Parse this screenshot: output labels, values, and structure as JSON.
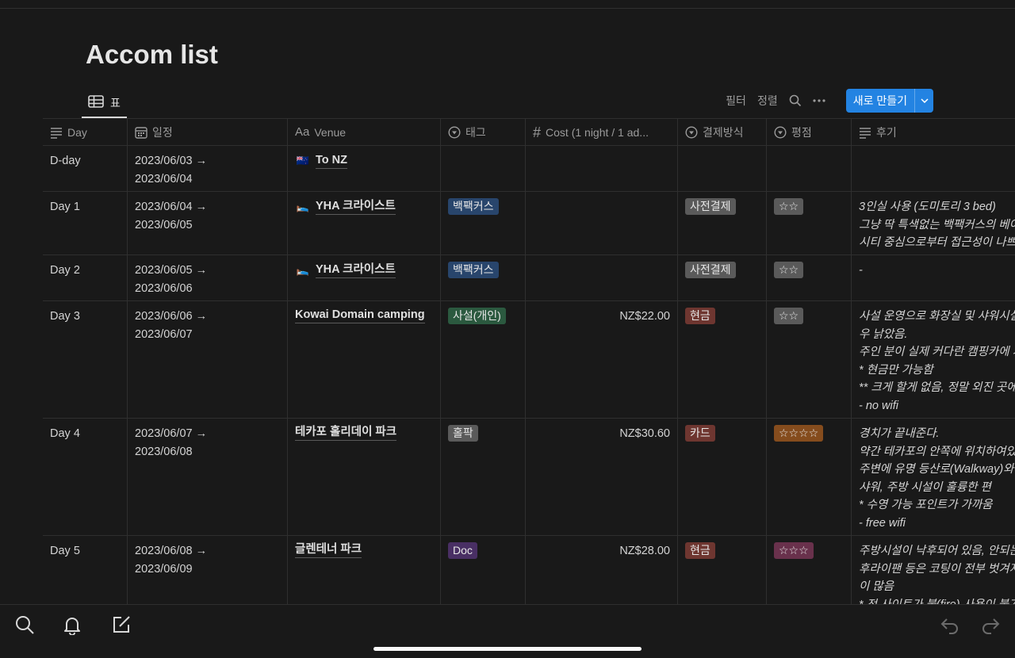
{
  "page": {
    "title": "Accom list"
  },
  "view": {
    "tab_label": "표"
  },
  "toolbar": {
    "filter": "필터",
    "sort": "정렬",
    "new_button": "새로 만들기"
  },
  "columns": [
    {
      "label": "Day",
      "icon": "text-lines-icon"
    },
    {
      "label": "일정",
      "icon": "calendar-icon"
    },
    {
      "label": "Venue",
      "icon": "title-aa-icon"
    },
    {
      "label": "태그",
      "icon": "select-icon"
    },
    {
      "label": "Cost (1 night / 1 ad...",
      "icon": "number-hash-icon"
    },
    {
      "label": "결제방식",
      "icon": "select-icon"
    },
    {
      "label": "평점",
      "icon": "select-icon"
    },
    {
      "label": "후기",
      "icon": "text-lines-icon"
    }
  ],
  "rows": [
    {
      "day": "D-day",
      "date1": "2023/06/03 →",
      "date2": "2023/06/04",
      "venue_emoji": "🇳🇿",
      "venue": "To NZ",
      "tag": "",
      "tag_color": "",
      "cost": "",
      "payment": "",
      "payment_color": "",
      "rating": "",
      "rating_color": "",
      "review": [
        ""
      ]
    },
    {
      "day": "Day 1",
      "date1": "2023/06/04 →",
      "date2": "2023/06/05",
      "venue_emoji": "🛌",
      "venue": "YHA 크라이스트",
      "tag": "백팩커스",
      "tag_color": "#28456c",
      "cost": "",
      "payment": "사전결제",
      "payment_color": "#5a5a5a",
      "rating": "☆☆",
      "rating_color": "#5a5a5a",
      "review": [
        "3인실 사용 (도미토리 3 bed)",
        "그냥 딱 특색없는 백팩커스의 베이",
        "시티 중심으로부터 접근성이 나쁘지"
      ]
    },
    {
      "day": "Day 2",
      "date1": "2023/06/05 →",
      "date2": "2023/06/06",
      "venue_emoji": "🛌",
      "venue": "YHA 크라이스트",
      "tag": "백팩커스",
      "tag_color": "#28456c",
      "cost": "",
      "payment": "사전결제",
      "payment_color": "#5a5a5a",
      "rating": "☆☆",
      "rating_color": "#5a5a5a",
      "review": [
        "-"
      ]
    },
    {
      "day": "Day 3",
      "date1": "2023/06/06 →",
      "date2": "2023/06/07",
      "venue_emoji": "",
      "venue": "Kowai Domain camping",
      "tag": "사설(개인)",
      "tag_color": "#2b593f",
      "cost": "NZ$22.00",
      "payment": "현금",
      "payment_color": "#6e3630",
      "rating": "☆☆",
      "rating_color": "#5a5a5a",
      "review": [
        "사설 운영으로 화장실 및 샤워시설",
        "우 낡았음.",
        "주인 분이 실제 커다란 캠핑카에 거",
        "* 현금만 가능함",
        "** 크게 할게 없음, 정말 외진 곳에",
        "- no wifi"
      ]
    },
    {
      "day": "Day 4",
      "date1": "2023/06/07 →",
      "date2": "2023/06/08",
      "venue_emoji": "",
      "venue": "테카포 홀리데이 파크",
      "tag": "홀팍",
      "tag_color": "#5a5a5a",
      "cost": "NZ$30.60",
      "payment": "카드",
      "payment_color": "#6e3630",
      "rating": "☆☆☆☆",
      "rating_color": "#854c1d",
      "review": [
        "경치가 끝내준다.",
        "약간 테카포의 안쪽에 위치하여있었",
        "주변에 유명 등산로(Walkway)와",
        "샤워, 주방 시설이 훌륭한 편",
        "* 수영 가능 포인트가 가까움",
        "- free wifi"
      ]
    },
    {
      "day": "Day 5",
      "date1": "2023/06/08 →",
      "date2": "2023/06/09",
      "venue_emoji": "",
      "venue": "글렌테너 파크",
      "tag": "Doc",
      "tag_color": "#492f64",
      "cost": "NZ$28.00",
      "payment": "현금",
      "payment_color": "#6e3630",
      "rating": "☆☆☆",
      "rating_color": "#69314c",
      "review": [
        "주방시설이 낙후되어 있음, 안되는",
        "후라이팬 등은 코팅이 전부 벗겨지",
        "이 많음",
        "* 전 사이트가 불(fire) 사용이 불가"
      ]
    }
  ],
  "colors": {
    "background": "#191919",
    "accent": "#2383e2",
    "border": "#2f2f2f"
  }
}
